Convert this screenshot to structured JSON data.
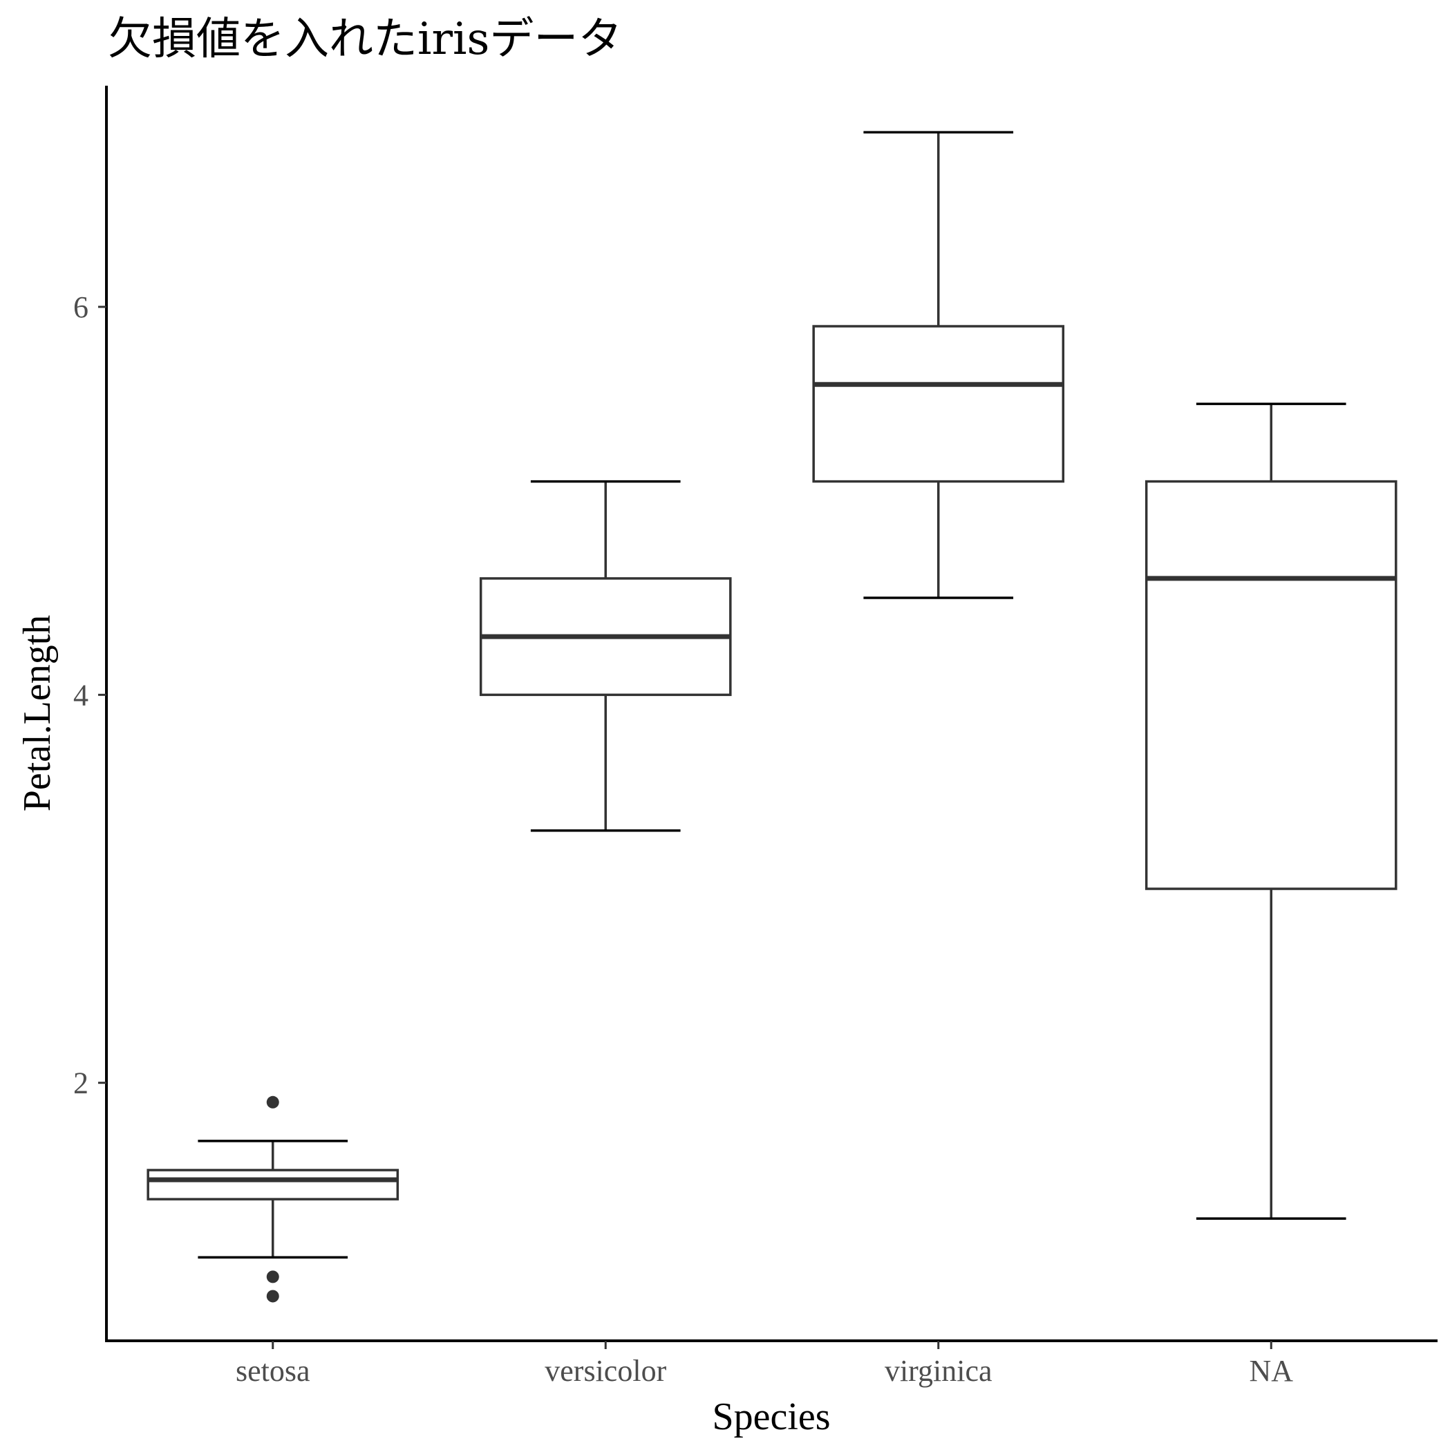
{
  "chart_data": {
    "type": "boxplot",
    "title": "欠損値を入れたirisデータ",
    "xlabel": "Species",
    "ylabel": "Petal.Length",
    "categories": [
      "setosa",
      "versicolor",
      "virginica",
      "NA"
    ],
    "y_ticks": [
      2,
      4,
      6
    ],
    "ylim": [
      0.67,
      7.14
    ],
    "grid": false,
    "legend": "none",
    "boxes": [
      {
        "category": "setosa",
        "q1": 1.4,
        "median": 1.5,
        "q3": 1.55,
        "whisker_low": 1.1,
        "whisker_high": 1.7,
        "outliers": [
          1.9,
          1.0,
          0.9
        ]
      },
      {
        "category": "versicolor",
        "q1": 4.0,
        "median": 4.3,
        "q3": 4.6,
        "whisker_low": 3.3,
        "whisker_high": 5.1,
        "outliers": []
      },
      {
        "category": "virginica",
        "q1": 5.1,
        "median": 5.6,
        "q3": 5.9,
        "whisker_low": 4.5,
        "whisker_high": 6.9,
        "outliers": []
      },
      {
        "category": "NA",
        "q1": 3.0,
        "median": 4.6,
        "q3": 5.1,
        "whisker_low": 1.3,
        "whisker_high": 5.5,
        "outliers": []
      }
    ]
  }
}
